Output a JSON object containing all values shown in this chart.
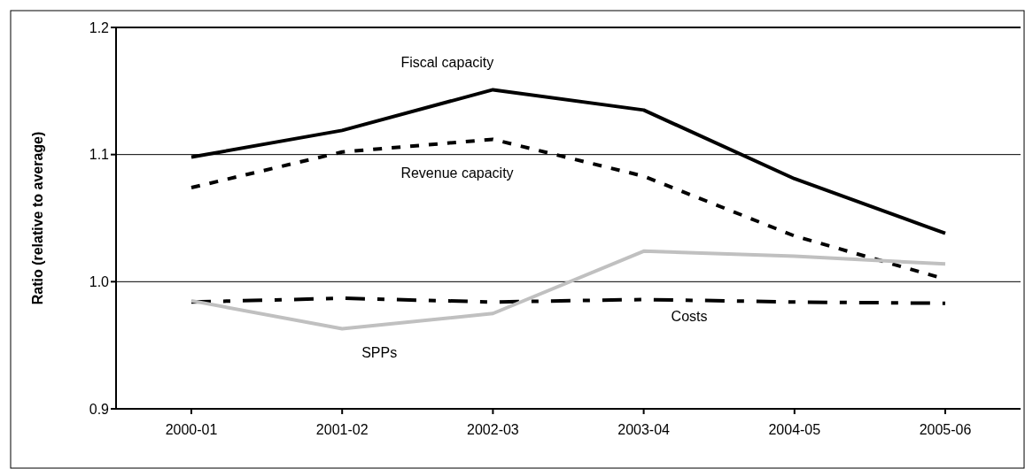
{
  "chart_data": {
    "type": "line",
    "ylabel": "Ratio (relative to average)",
    "categories": [
      "2000-01",
      "2001-02",
      "2002-03",
      "2003-04",
      "2004-05",
      "2005-06"
    ],
    "ylim": [
      0.9,
      1.2
    ],
    "yticks": [
      {
        "value": 0.9,
        "label": "0.9"
      },
      {
        "value": 1.0,
        "label": "1.0"
      },
      {
        "value": 1.1,
        "label": "1.1"
      },
      {
        "value": 1.2,
        "label": "1.2"
      }
    ],
    "grid": "y",
    "marker": "none",
    "series": [
      {
        "name": "Fiscal capacity",
        "color": "#000000",
        "line_style": "solid",
        "values": [
          1.098,
          1.119,
          1.151,
          1.135,
          1.081,
          1.038
        ]
      },
      {
        "name": "Revenue capacity",
        "color": "#000000",
        "line_style": "dashed",
        "values": [
          1.074,
          1.102,
          1.112,
          1.083,
          1.036,
          1.002
        ]
      },
      {
        "name": "Costs",
        "color": "#000000",
        "line_style": "dashdot",
        "values": [
          0.984,
          0.987,
          0.984,
          0.986,
          0.984,
          0.983
        ]
      },
      {
        "name": "SPPs",
        "color": "#c0c0c0",
        "line_style": "solid",
        "values": [
          0.985,
          0.963,
          0.975,
          1.024,
          1.02,
          1.014
        ]
      }
    ]
  }
}
